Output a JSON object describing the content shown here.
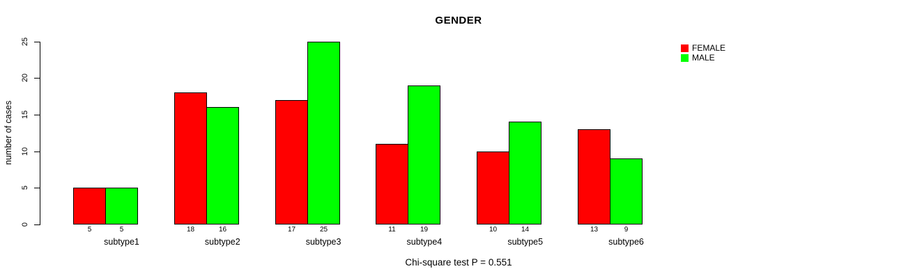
{
  "title": "GENDER",
  "y_axis": {
    "label": "number of cases",
    "ticks": [
      0,
      5,
      10,
      15,
      20,
      25
    ]
  },
  "legend": {
    "items": [
      {
        "label": "FEMALE",
        "color": "#FF0000"
      },
      {
        "label": "MALE",
        "color": "#00FF00"
      }
    ]
  },
  "footer": "Chi-square test P = 0.551",
  "chart_data": {
    "type": "bar",
    "title": "GENDER",
    "xlabel": "",
    "ylabel": "number of cases",
    "categories": [
      "subtype1",
      "subtype2",
      "subtype3",
      "subtype4",
      "subtype5",
      "subtype6"
    ],
    "series": [
      {
        "name": "FEMALE",
        "color": "#FF0000",
        "values": [
          5,
          18,
          17,
          11,
          10,
          13
        ]
      },
      {
        "name": "MALE",
        "color": "#00FF00",
        "values": [
          5,
          16,
          25,
          19,
          14,
          9
        ]
      }
    ],
    "ylim": [
      0,
      25
    ],
    "yticks": [
      0,
      5,
      10,
      15,
      20,
      25
    ],
    "grid": false,
    "legend_position": "top-right",
    "bar_value_labels": true,
    "annotation": "Chi-square test P = 0.551"
  }
}
